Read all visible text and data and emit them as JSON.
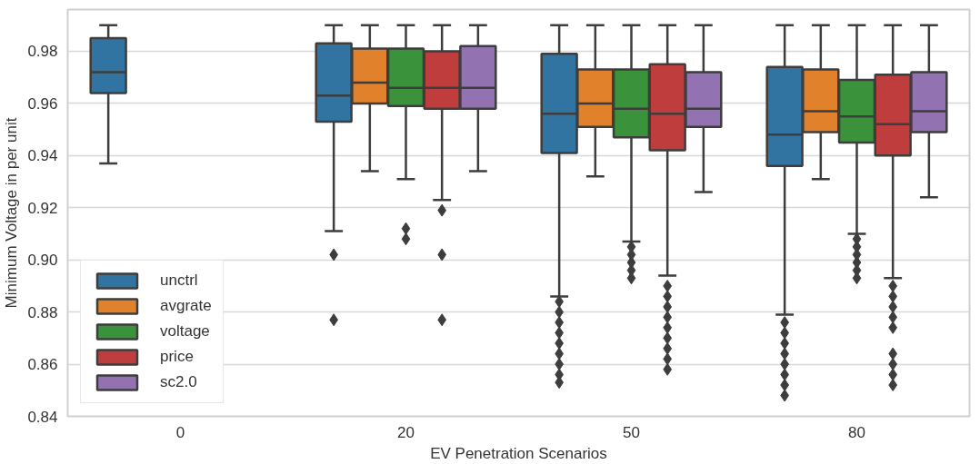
{
  "chart_data": {
    "type": "box",
    "xlabel": "EV Penetration Scenarios",
    "ylabel": "Minimum Voltage in per unit",
    "categories": [
      "0",
      "20",
      "50",
      "80"
    ],
    "ylim": [
      0.84,
      0.996
    ],
    "yticks": [
      0.84,
      0.86,
      0.88,
      {
        "value": 0.9,
        "label": "0.90"
      },
      0.92,
      0.94,
      0.96,
      0.98
    ],
    "grid": "y",
    "legend": "bottom left",
    "marker": "diamond",
    "series": [
      {
        "name": "unctrl",
        "color": "#3274a1",
        "boxes": [
          {
            "low": 0.937,
            "q1": 0.964,
            "median": 0.972,
            "q3": 0.985,
            "high": 0.99
          },
          {
            "low": 0.911,
            "q1": 0.953,
            "median": 0.963,
            "q3": 0.983,
            "high": 0.99,
            "outliers": [
              0.902,
              0.877
            ]
          },
          {
            "low": 0.886,
            "q1": 0.941,
            "median": 0.956,
            "q3": 0.979,
            "high": 0.99,
            "outliers": [
              0.884,
              0.88,
              0.876,
              0.872,
              0.868,
              0.864,
              0.86,
              0.856,
              0.853
            ]
          },
          {
            "low": 0.879,
            "q1": 0.936,
            "median": 0.948,
            "q3": 0.974,
            "high": 0.99,
            "outliers": [
              0.876,
              0.872,
              0.868,
              0.864,
              0.86,
              0.856,
              0.852,
              0.848
            ]
          }
        ]
      },
      {
        "name": "avgrate",
        "color": "#e1812c",
        "boxes": [
          null,
          {
            "low": 0.934,
            "q1": 0.96,
            "median": 0.968,
            "q3": 0.981,
            "high": 0.99
          },
          {
            "low": 0.932,
            "q1": 0.951,
            "median": 0.96,
            "q3": 0.973,
            "high": 0.99
          },
          {
            "low": 0.931,
            "q1": 0.949,
            "median": 0.957,
            "q3": 0.973,
            "high": 0.99
          }
        ]
      },
      {
        "name": "voltage",
        "color": "#3a923a",
        "boxes": [
          null,
          {
            "low": 0.931,
            "q1": 0.959,
            "median": 0.966,
            "q3": 0.981,
            "high": 0.99,
            "outliers": [
              0.912,
              0.908
            ]
          },
          {
            "low": 0.907,
            "q1": 0.947,
            "median": 0.958,
            "q3": 0.973,
            "high": 0.99,
            "outliers": [
              0.905,
              0.902,
              0.899,
              0.896,
              0.893
            ]
          },
          {
            "low": 0.91,
            "q1": 0.945,
            "median": 0.955,
            "q3": 0.969,
            "high": 0.99,
            "outliers": [
              0.908,
              0.905,
              0.902,
              0.899,
              0.896,
              0.893
            ]
          }
        ]
      },
      {
        "name": "price",
        "color": "#c03d3e",
        "boxes": [
          null,
          {
            "low": 0.923,
            "q1": 0.958,
            "median": 0.966,
            "q3": 0.98,
            "high": 0.99,
            "outliers": [
              0.919,
              0.902,
              0.877
            ]
          },
          {
            "low": 0.894,
            "q1": 0.942,
            "median": 0.956,
            "q3": 0.975,
            "high": 0.99,
            "outliers": [
              0.89,
              0.886,
              0.882,
              0.878,
              0.874,
              0.87,
              0.866,
              0.862,
              0.858
            ]
          },
          {
            "low": 0.893,
            "q1": 0.94,
            "median": 0.952,
            "q3": 0.971,
            "high": 0.99,
            "outliers": [
              0.89,
              0.886,
              0.882,
              0.878,
              0.874,
              0.864,
              0.86,
              0.856,
              0.852
            ]
          }
        ]
      },
      {
        "name": "sc2.0",
        "color": "#9372b2",
        "boxes": [
          null,
          {
            "low": 0.934,
            "q1": 0.958,
            "median": 0.966,
            "q3": 0.982,
            "high": 0.99
          },
          {
            "low": 0.926,
            "q1": 0.951,
            "median": 0.958,
            "q3": 0.972,
            "high": 0.99
          },
          {
            "low": 0.924,
            "q1": 0.949,
            "median": 0.957,
            "q3": 0.972,
            "high": 0.99
          }
        ]
      }
    ]
  }
}
